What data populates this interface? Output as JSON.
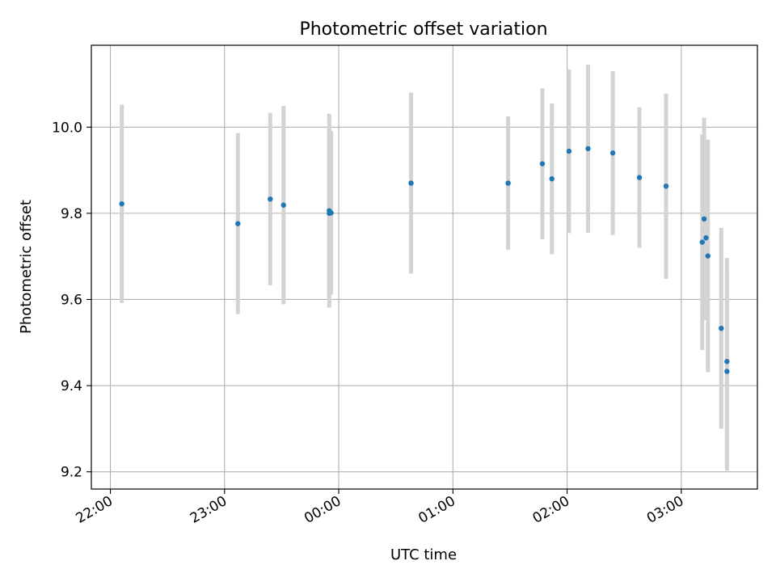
{
  "chart_data": {
    "type": "scatter",
    "title": "Photometric offset variation",
    "xlabel": "UTC time",
    "ylabel": "Photometric offset",
    "x_axis_type": "time",
    "x_ticks": [
      "22:00",
      "23:00",
      "00:00",
      "01:00",
      "02:00",
      "03:00"
    ],
    "y_ticks": [
      "9.2",
      "9.4",
      "9.6",
      "9.8",
      "10.0"
    ],
    "ylim": [
      9.16,
      10.19
    ],
    "xlim": [
      "21:50",
      "03:40"
    ],
    "grid": true,
    "colors": {
      "points": "#1f77b4",
      "errorbars": "#d3d3d3",
      "grid": "#b0b0b0",
      "axes": "#000000"
    },
    "series": [
      {
        "points": [
          {
            "x": "22:06",
            "y": 9.822,
            "err": 0.23
          },
          {
            "x": "23:07",
            "y": 9.776,
            "err": 0.21
          },
          {
            "x": "23:24",
            "y": 9.833,
            "err": 0.2
          },
          {
            "x": "23:31",
            "y": 9.819,
            "err": 0.23
          },
          {
            "x": "23:55",
            "y": 9.806,
            "err": 0.225
          },
          {
            "x": "23:55",
            "y": 9.8,
            "err": 0.205
          },
          {
            "x": "23:56",
            "y": 9.801,
            "err": 0.19
          },
          {
            "x": "00:38",
            "y": 9.87,
            "err": 0.21
          },
          {
            "x": "01:29",
            "y": 9.87,
            "err": 0.155
          },
          {
            "x": "01:47",
            "y": 9.915,
            "err": 0.175
          },
          {
            "x": "01:52",
            "y": 9.88,
            "err": 0.175
          },
          {
            "x": "02:01",
            "y": 9.944,
            "err": 0.19
          },
          {
            "x": "02:11",
            "y": 9.95,
            "err": 0.195
          },
          {
            "x": "02:24",
            "y": 9.94,
            "err": 0.19
          },
          {
            "x": "02:38",
            "y": 9.883,
            "err": 0.163
          },
          {
            "x": "02:52",
            "y": 9.863,
            "err": 0.215
          },
          {
            "x": "03:11",
            "y": 9.733,
            "err": 0.25
          },
          {
            "x": "03:12",
            "y": 9.787,
            "err": 0.235
          },
          {
            "x": "03:13",
            "y": 9.743,
            "err": 0.19
          },
          {
            "x": "03:14",
            "y": 9.701,
            "err": 0.27
          },
          {
            "x": "03:21",
            "y": 9.533,
            "err": 0.233
          },
          {
            "x": "03:24",
            "y": 9.456,
            "err": 0.24
          },
          {
            "x": "03:24",
            "y": 9.433,
            "err": 0.23
          }
        ]
      }
    ]
  }
}
